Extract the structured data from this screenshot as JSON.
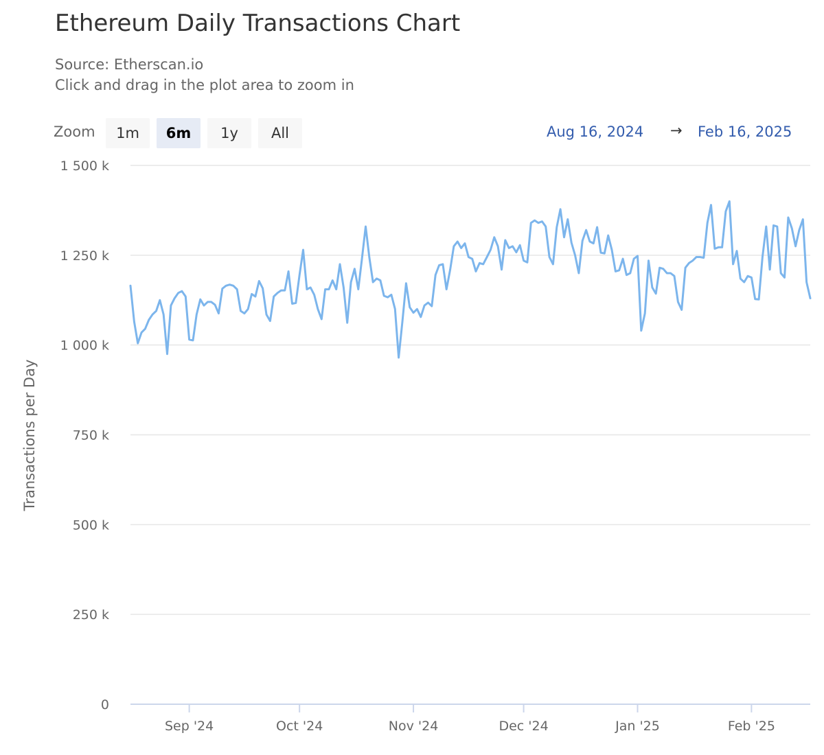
{
  "header": {
    "title": "Ethereum Daily Transactions Chart",
    "source": "Source: Etherscan.io",
    "hint": "Click and drag in the plot area to zoom in"
  },
  "zoom": {
    "label": "Zoom",
    "buttons": [
      "1m",
      "6m",
      "1y",
      "All"
    ],
    "selected": "6m"
  },
  "range": {
    "from": "Aug 16, 2024",
    "arrow": "→",
    "to": "Feb 16, 2025"
  },
  "colors": {
    "line": "#7cb5ec",
    "grid": "#e6e6e6",
    "range_text": "#335cad"
  },
  "chart_data": {
    "type": "line",
    "ylabel": "Transactions per Day",
    "ylim": [
      0,
      1500000
    ],
    "yticks": [
      0,
      250000,
      500000,
      750000,
      1000000,
      1250000,
      1500000
    ],
    "ytick_labels": [
      "0",
      "250 k",
      "500 k",
      "750 k",
      "1 000 k",
      "1 250 k",
      "1 500 k"
    ],
    "x_start": "2024-08-16",
    "x_end": "2025-02-16",
    "xticks": [
      {
        "date": "2024-09-01",
        "label": "Sep '24"
      },
      {
        "date": "2024-10-01",
        "label": "Oct '24"
      },
      {
        "date": "2024-11-01",
        "label": "Nov '24"
      },
      {
        "date": "2024-12-01",
        "label": "Dec '24"
      },
      {
        "date": "2025-01-01",
        "label": "Jan '25"
      },
      {
        "date": "2025-02-01",
        "label": "Feb '25"
      }
    ],
    "series": [
      {
        "values": [
          [
            1.165,
            "2024-08-16"
          ],
          [
            1.065,
            "2024-08-17"
          ],
          [
            1.005,
            "2024-08-18"
          ],
          [
            1.035,
            "2024-08-19"
          ],
          [
            1.045,
            "2024-08-20"
          ],
          [
            1.07,
            "2024-08-21"
          ],
          [
            1.085,
            "2024-08-22"
          ],
          [
            1.095,
            "2024-08-23"
          ],
          [
            1.125,
            "2024-08-24"
          ],
          [
            1.085,
            "2024-08-25"
          ],
          [
            0.975,
            "2024-08-26"
          ],
          [
            1.11,
            "2024-08-27"
          ],
          [
            1.13,
            "2024-08-28"
          ],
          [
            1.145,
            "2024-08-29"
          ],
          [
            1.15,
            "2024-08-30"
          ],
          [
            1.135,
            "2024-08-31"
          ],
          [
            1.015,
            "2024-09-01"
          ],
          [
            1.013,
            "2024-09-02"
          ],
          [
            1.085,
            "2024-09-03"
          ],
          [
            1.127,
            "2024-09-04"
          ],
          [
            1.11,
            "2024-09-05"
          ],
          [
            1.12,
            "2024-09-06"
          ],
          [
            1.12,
            "2024-09-07"
          ],
          [
            1.112,
            "2024-09-08"
          ],
          [
            1.088,
            "2024-09-09"
          ],
          [
            1.157,
            "2024-09-10"
          ],
          [
            1.165,
            "2024-09-11"
          ],
          [
            1.168,
            "2024-09-12"
          ],
          [
            1.165,
            "2024-09-13"
          ],
          [
            1.155,
            "2024-09-14"
          ],
          [
            1.095,
            "2024-09-15"
          ],
          [
            1.088,
            "2024-09-16"
          ],
          [
            1.1,
            "2024-09-17"
          ],
          [
            1.142,
            "2024-09-18"
          ],
          [
            1.135,
            "2024-09-19"
          ],
          [
            1.178,
            "2024-09-20"
          ],
          [
            1.158,
            "2024-09-21"
          ],
          [
            1.085,
            "2024-09-22"
          ],
          [
            1.067,
            "2024-09-23"
          ],
          [
            1.135,
            "2024-09-24"
          ],
          [
            1.145,
            "2024-09-25"
          ],
          [
            1.152,
            "2024-09-26"
          ],
          [
            1.152,
            "2024-09-27"
          ],
          [
            1.205,
            "2024-09-28"
          ],
          [
            1.115,
            "2024-09-29"
          ],
          [
            1.117,
            "2024-09-30"
          ],
          [
            1.195,
            "2024-10-01"
          ],
          [
            1.265,
            "2024-10-02"
          ],
          [
            1.155,
            "2024-10-03"
          ],
          [
            1.16,
            "2024-10-04"
          ],
          [
            1.14,
            "2024-10-05"
          ],
          [
            1.1,
            "2024-10-06"
          ],
          [
            1.072,
            "2024-10-07"
          ],
          [
            1.155,
            "2024-10-08"
          ],
          [
            1.155,
            "2024-10-09"
          ],
          [
            1.18,
            "2024-10-10"
          ],
          [
            1.155,
            "2024-10-11"
          ],
          [
            1.225,
            "2024-10-12"
          ],
          [
            1.16,
            "2024-10-13"
          ],
          [
            1.062,
            "2024-10-14"
          ],
          [
            1.175,
            "2024-10-15"
          ],
          [
            1.212,
            "2024-10-16"
          ],
          [
            1.155,
            "2024-10-17"
          ],
          [
            1.24,
            "2024-10-18"
          ],
          [
            1.33,
            "2024-10-19"
          ],
          [
            1.245,
            "2024-10-20"
          ],
          [
            1.175,
            "2024-10-21"
          ],
          [
            1.185,
            "2024-10-22"
          ],
          [
            1.18,
            "2024-10-23"
          ],
          [
            1.137,
            "2024-10-24"
          ],
          [
            1.133,
            "2024-10-25"
          ],
          [
            1.14,
            "2024-10-26"
          ],
          [
            1.1,
            "2024-10-27"
          ],
          [
            0.965,
            "2024-10-28"
          ],
          [
            1.065,
            "2024-10-29"
          ],
          [
            1.172,
            "2024-10-30"
          ],
          [
            1.105,
            "2024-10-31"
          ],
          [
            1.09,
            "2024-11-01"
          ],
          [
            1.1,
            "2024-11-02"
          ],
          [
            1.078,
            "2024-11-03"
          ],
          [
            1.11,
            "2024-11-04"
          ],
          [
            1.118,
            "2024-11-05"
          ],
          [
            1.108,
            "2024-11-06"
          ],
          [
            1.195,
            "2024-11-07"
          ],
          [
            1.222,
            "2024-11-08"
          ],
          [
            1.225,
            "2024-11-09"
          ],
          [
            1.155,
            "2024-11-10"
          ],
          [
            1.21,
            "2024-11-11"
          ],
          [
            1.275,
            "2024-11-12"
          ],
          [
            1.288,
            "2024-11-13"
          ],
          [
            1.27,
            "2024-11-14"
          ],
          [
            1.283,
            "2024-11-15"
          ],
          [
            1.245,
            "2024-11-16"
          ],
          [
            1.24,
            "2024-11-17"
          ],
          [
            1.205,
            "2024-11-18"
          ],
          [
            1.228,
            "2024-11-19"
          ],
          [
            1.225,
            "2024-11-20"
          ],
          [
            1.245,
            "2024-11-21"
          ],
          [
            1.265,
            "2024-11-22"
          ],
          [
            1.3,
            "2024-11-23"
          ],
          [
            1.275,
            "2024-11-24"
          ],
          [
            1.21,
            "2024-11-25"
          ],
          [
            1.292,
            "2024-11-26"
          ],
          [
            1.27,
            "2024-11-27"
          ],
          [
            1.275,
            "2024-11-28"
          ],
          [
            1.258,
            "2024-11-29"
          ],
          [
            1.278,
            "2024-11-30"
          ],
          [
            1.235,
            "2024-12-01"
          ],
          [
            1.23,
            "2024-12-02"
          ],
          [
            1.34,
            "2024-12-03"
          ],
          [
            1.347,
            "2024-12-04"
          ],
          [
            1.34,
            "2024-12-05"
          ],
          [
            1.344,
            "2024-12-06"
          ],
          [
            1.33,
            "2024-12-07"
          ],
          [
            1.245,
            "2024-12-08"
          ],
          [
            1.225,
            "2024-12-09"
          ],
          [
            1.328,
            "2024-12-10"
          ],
          [
            1.378,
            "2024-12-11"
          ],
          [
            1.3,
            "2024-12-12"
          ],
          [
            1.35,
            "2024-12-13"
          ],
          [
            1.285,
            "2024-12-14"
          ],
          [
            1.25,
            "2024-12-15"
          ],
          [
            1.2,
            "2024-12-16"
          ],
          [
            1.29,
            "2024-12-17"
          ],
          [
            1.32,
            "2024-12-18"
          ],
          [
            1.288,
            "2024-12-19"
          ],
          [
            1.283,
            "2024-12-20"
          ],
          [
            1.328,
            "2024-12-21"
          ],
          [
            1.257,
            "2024-12-22"
          ],
          [
            1.255,
            "2024-12-23"
          ],
          [
            1.305,
            "2024-12-24"
          ],
          [
            1.265,
            "2024-12-25"
          ],
          [
            1.205,
            "2024-12-26"
          ],
          [
            1.208,
            "2024-12-27"
          ],
          [
            1.24,
            "2024-12-28"
          ],
          [
            1.195,
            "2024-12-29"
          ],
          [
            1.2,
            "2024-12-30"
          ],
          [
            1.24,
            "2024-12-31"
          ],
          [
            1.248,
            "2025-01-01"
          ],
          [
            1.04,
            "2025-01-02"
          ],
          [
            1.088,
            "2025-01-03"
          ],
          [
            1.235,
            "2025-01-04"
          ],
          [
            1.16,
            "2025-01-05"
          ],
          [
            1.143,
            "2025-01-06"
          ],
          [
            1.215,
            "2025-01-07"
          ],
          [
            1.212,
            "2025-01-08"
          ],
          [
            1.2,
            "2025-01-09"
          ],
          [
            1.2,
            "2025-01-10"
          ],
          [
            1.192,
            "2025-01-11"
          ],
          [
            1.12,
            "2025-01-12"
          ],
          [
            1.098,
            "2025-01-13"
          ],
          [
            1.215,
            "2025-01-14"
          ],
          [
            1.228,
            "2025-01-15"
          ],
          [
            1.235,
            "2025-01-16"
          ],
          [
            1.245,
            "2025-01-17"
          ],
          [
            1.245,
            "2025-01-18"
          ],
          [
            1.243,
            "2025-01-19"
          ],
          [
            1.34,
            "2025-01-20"
          ],
          [
            1.39,
            "2025-01-21"
          ],
          [
            1.268,
            "2025-01-22"
          ],
          [
            1.272,
            "2025-01-23"
          ],
          [
            1.272,
            "2025-01-24"
          ],
          [
            1.372,
            "2025-01-25"
          ],
          [
            1.4,
            "2025-01-26"
          ],
          [
            1.225,
            "2025-01-27"
          ],
          [
            1.262,
            "2025-01-28"
          ],
          [
            1.185,
            "2025-01-29"
          ],
          [
            1.175,
            "2025-01-30"
          ],
          [
            1.192,
            "2025-01-31"
          ],
          [
            1.188,
            "2025-02-01"
          ],
          [
            1.128,
            "2025-02-02"
          ],
          [
            1.127,
            "2025-02-03"
          ],
          [
            1.245,
            "2025-02-04"
          ],
          [
            1.33,
            "2025-02-05"
          ],
          [
            1.21,
            "2025-02-06"
          ],
          [
            1.333,
            "2025-02-07"
          ],
          [
            1.33,
            "2025-02-08"
          ],
          [
            1.2,
            "2025-02-09"
          ],
          [
            1.188,
            "2025-02-10"
          ],
          [
            1.355,
            "2025-02-11"
          ],
          [
            1.325,
            "2025-02-12"
          ],
          [
            1.275,
            "2025-02-13"
          ],
          [
            1.32,
            "2025-02-14"
          ],
          [
            1.35,
            "2025-02-15"
          ],
          [
            1.175,
            "2025-02-16"
          ],
          [
            1.13,
            "2025-02-17"
          ]
        ],
        "value_unit": "million transactions"
      }
    ]
  }
}
